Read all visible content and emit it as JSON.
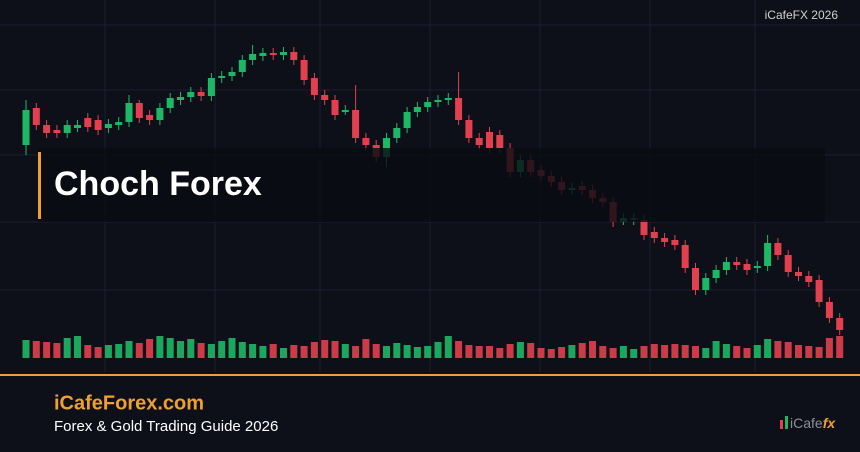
{
  "chart_data": {
    "type": "candlestick",
    "title": "Choch Forex",
    "up_color": "#1db866",
    "down_color": "#e2404e",
    "ylim": [
      0,
      400
    ],
    "open": [
      255,
      292,
      275,
      270,
      267,
      272,
      282,
      280,
      272,
      275,
      278,
      297,
      285,
      280,
      292,
      300,
      303,
      308,
      304,
      322,
      324,
      328,
      340,
      344,
      347,
      345,
      348,
      340,
      322,
      305,
      300,
      288,
      290,
      262,
      255,
      243,
      262,
      272,
      288,
      293,
      298,
      300,
      302,
      280,
      262,
      268,
      265,
      252,
      228,
      240,
      230,
      224,
      218,
      210,
      214,
      210,
      202,
      198,
      178,
      181,
      180,
      168,
      162,
      160,
      155,
      132,
      110,
      122,
      130,
      138,
      136,
      132,
      134,
      157,
      145,
      128,
      124,
      120,
      98,
      82
    ],
    "high": [
      300,
      297,
      280,
      275,
      280,
      280,
      287,
      285,
      281,
      283,
      305,
      300,
      290,
      297,
      307,
      308,
      313,
      313,
      327,
      329,
      333,
      345,
      355,
      352,
      352,
      353,
      353,
      345,
      327,
      310,
      305,
      295,
      315,
      267,
      260,
      267,
      277,
      293,
      298,
      303,
      305,
      307,
      328,
      285,
      267,
      273,
      270,
      257,
      245,
      245,
      235,
      229,
      223,
      217,
      219,
      215,
      207,
      203,
      187,
      187,
      185,
      173,
      167,
      165,
      160,
      137,
      127,
      135,
      143,
      143,
      141,
      139,
      165,
      162,
      150,
      133,
      129,
      125,
      103,
      87
    ],
    "low": [
      245,
      270,
      262,
      262,
      262,
      268,
      268,
      265,
      267,
      270,
      273,
      277,
      275,
      275,
      287,
      295,
      298,
      299,
      299,
      317,
      319,
      323,
      335,
      339,
      340,
      340,
      335,
      315,
      300,
      295,
      280,
      285,
      257,
      250,
      238,
      233,
      257,
      267,
      283,
      288,
      293,
      295,
      275,
      257,
      250,
      247,
      247,
      223,
      223,
      223,
      219,
      213,
      205,
      205,
      205,
      197,
      193,
      173,
      175,
      175,
      160,
      157,
      153,
      150,
      127,
      105,
      105,
      117,
      125,
      130,
      125,
      127,
      129,
      140,
      123,
      119,
      113,
      93,
      77,
      65
    ],
    "close": [
      290,
      275,
      267,
      267,
      275,
      275,
      273,
      270,
      276,
      278,
      297,
      282,
      280,
      292,
      302,
      303,
      308,
      304,
      322,
      324,
      328,
      340,
      346,
      347,
      345,
      348,
      340,
      320,
      305,
      300,
      285,
      290,
      262,
      255,
      243,
      262,
      272,
      288,
      293,
      298,
      300,
      302,
      280,
      262,
      255,
      252,
      252,
      228,
      240,
      228,
      224,
      218,
      210,
      212,
      210,
      202,
      198,
      178,
      182,
      182,
      165,
      162,
      158,
      155,
      132,
      110,
      122,
      130,
      138,
      135,
      130,
      134,
      157,
      145,
      128,
      124,
      118,
      98,
      82,
      70
    ],
    "volume": [
      18,
      17,
      16,
      15,
      20,
      22,
      13,
      11,
      13,
      14,
      17,
      15,
      19,
      22,
      20,
      17,
      19,
      15,
      14,
      17,
      20,
      16,
      14,
      12,
      14,
      10,
      13,
      12,
      16,
      18,
      17,
      14,
      12,
      19,
      14,
      12,
      15,
      13,
      11,
      12,
      16,
      22,
      17,
      13,
      12,
      12,
      10,
      14,
      16,
      15,
      10,
      9,
      11,
      13,
      15,
      17,
      12,
      10,
      12,
      9,
      12,
      14,
      13,
      14,
      13,
      12,
      10,
      17,
      14,
      12,
      10,
      13,
      19,
      17,
      16,
      13,
      12,
      11,
      20,
      22
    ]
  },
  "banner": {
    "watermark": "iCafeFX 2026",
    "site": "iCafeForex.com",
    "tagline": "Forex & Gold Trading Guide 2026",
    "logo_a": "iCafe",
    "logo_b": "fx"
  }
}
